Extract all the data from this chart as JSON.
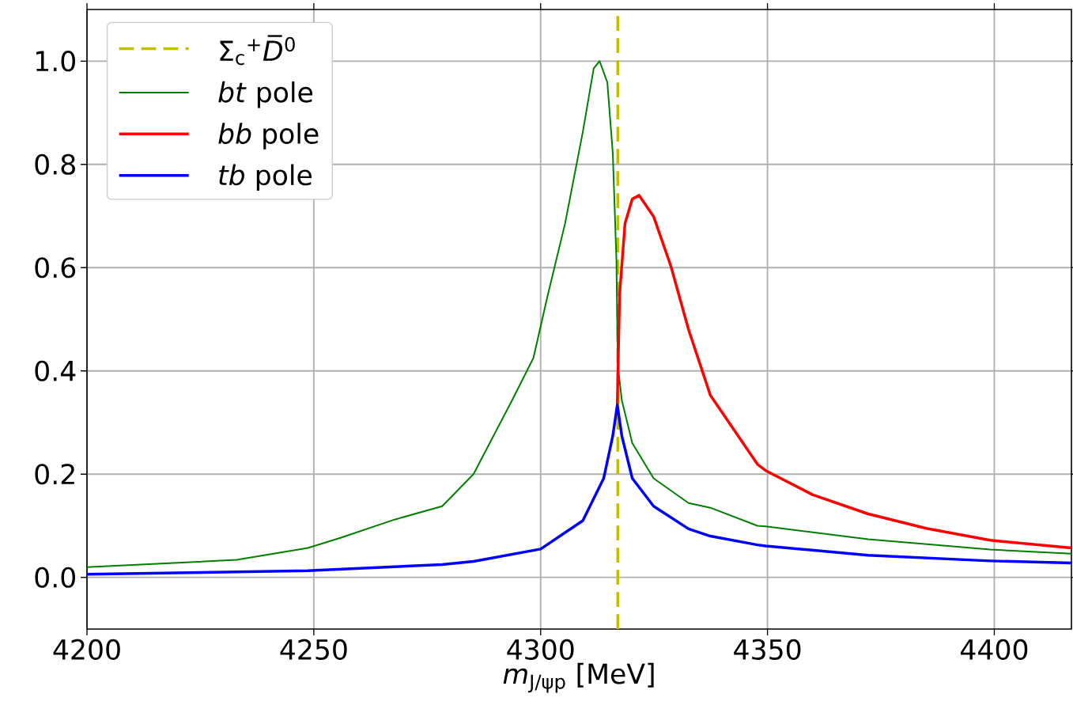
{
  "chart_data": {
    "type": "line",
    "xlabel": "*m*$_{J/ψp}$ [MeV]",
    "xlim": [
      4200,
      4417
    ],
    "ylim": [
      -0.1,
      1.1
    ],
    "xticks": [
      4200,
      4250,
      4300,
      4350,
      4400
    ],
    "yticks": [
      {
        "value": 0,
        "label": "0.0"
      },
      {
        "value": 0.2,
        "label": "0.2"
      },
      {
        "value": 0.4,
        "label": "0.4"
      },
      {
        "value": 0.6,
        "label": "0.6"
      },
      {
        "value": 0.8,
        "label": "0.8"
      },
      {
        "value": 1,
        "label": "1.0"
      }
    ],
    "grid": true,
    "legend": "top left",
    "line_style": "solid",
    "series": [
      {
        "name": "Σ$_{c}$$^{+}$*D̅*$^{0}$",
        "color": "#bfbf00",
        "line_style": "dashed",
        "x": [
          4317,
          4317
        ],
        "values": [
          -0.1,
          1.1
        ]
      },
      {
        "name": "*bt* pole",
        "color": "#008000",
        "x": [
          4200,
          4233,
          4248.7,
          4256,
          4267.8,
          4278.3,
          4285.2,
          4293.7,
          4298.4,
          4301.6,
          4305.4,
          4309.3,
          4311.7,
          4313.0,
          4314.7,
          4315.9,
          4316.7,
          4317.0,
          4317.9,
          4320.2,
          4324.9,
          4332.6,
          4337.4,
          4347.8,
          4349.6,
          4372.2,
          4399.1,
          4417
        ],
        "values": [
          0.02,
          0.034,
          0.057,
          0.077,
          0.112,
          0.138,
          0.2,
          0.343,
          0.425,
          0.548,
          0.686,
          0.863,
          0.986,
          1.0,
          0.959,
          0.822,
          0.617,
          0.411,
          0.343,
          0.26,
          0.192,
          0.144,
          0.135,
          0.1,
          0.099,
          0.074,
          0.054,
          0.046
        ]
      },
      {
        "name": "*bb* pole",
        "color": "#ff0000",
        "x": [
          4316.9,
          4317.4,
          4318.6,
          4320.2,
          4321.7,
          4324.9,
          4328.7,
          4332.6,
          4337.4,
          4347.8,
          4349.6,
          4360,
          4372.2,
          4385,
          4399.1,
          4417
        ],
        "values": [
          0.336,
          0.548,
          0.686,
          0.733,
          0.74,
          0.699,
          0.603,
          0.48,
          0.353,
          0.219,
          0.207,
          0.16,
          0.123,
          0.095,
          0.072,
          0.057
        ]
      },
      {
        "name": "*tb* pole",
        "color": "#0000ff",
        "x": [
          4200,
          4248.7,
          4278.3,
          4285.2,
          4300,
          4309.3,
          4313.9,
          4315.9,
          4316.9,
          4317.9,
          4320.2,
          4324.9,
          4332.6,
          4337.4,
          4347.8,
          4349.6,
          4372.2,
          4399.1,
          4417
        ],
        "values": [
          0.006,
          0.013,
          0.025,
          0.031,
          0.055,
          0.11,
          0.192,
          0.274,
          0.334,
          0.274,
          0.192,
          0.138,
          0.094,
          0.08,
          0.063,
          0.061,
          0.043,
          0.032,
          0.028
        ]
      }
    ]
  }
}
